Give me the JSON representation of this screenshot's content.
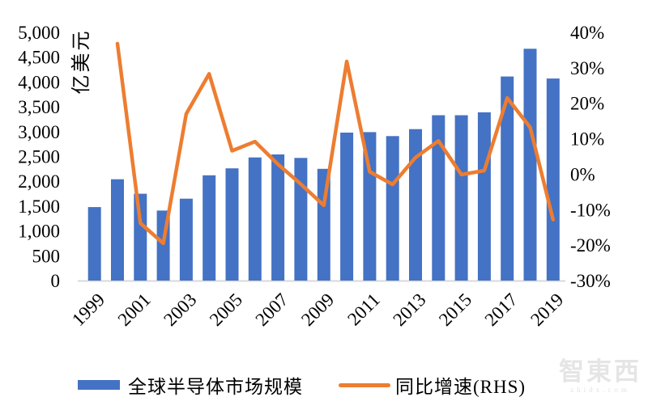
{
  "chart_data": {
    "type": "combo_bar_line",
    "x": [
      1999,
      2000,
      2001,
      2002,
      2003,
      2004,
      2005,
      2006,
      2007,
      2008,
      2009,
      2010,
      2011,
      2012,
      2013,
      2014,
      2015,
      2016,
      2017,
      2018,
      2019
    ],
    "x_axis_tick_labels": [
      "1999",
      "2001",
      "2003",
      "2005",
      "2007",
      "2009",
      "2011",
      "2013",
      "2015",
      "2017",
      "2019"
    ],
    "bar_series": {
      "name": "全球半导体市场规模",
      "unit": "亿美元",
      "color": "#4472C4",
      "values": [
        1480,
        2040,
        1750,
        1410,
        1650,
        2120,
        2260,
        2480,
        2540,
        2470,
        2250,
        2980,
        2990,
        2910,
        3050,
        3330,
        3330,
        3390,
        4110,
        4670,
        4070
      ]
    },
    "line_series": {
      "name": "同比增速(RHS)",
      "color": "#ED7D31",
      "first_year": 2000,
      "values_pct": [
        36.8,
        -13.8,
        -19.5,
        17.0,
        28.3,
        6.6,
        9.2,
        2.8,
        -2.8,
        -8.8,
        31.8,
        0.7,
        -2.9,
        4.7,
        9.4,
        -0.1,
        1.0,
        21.5,
        13.2,
        -12.8
      ]
    },
    "left_axis": {
      "title": "亿美元",
      "min": 0,
      "max": 5000,
      "step": 500,
      "tick_labels": [
        "0",
        "500",
        "1,000",
        "1,500",
        "2,000",
        "2,500",
        "3,000",
        "3,500",
        "4,000",
        "4,500",
        "5,000"
      ]
    },
    "right_axis": {
      "min": -30,
      "max": 40,
      "step": 10,
      "tick_labels": [
        "-30%",
        "-20%",
        "-10%",
        "0%",
        "10%",
        "20%",
        "30%",
        "40%"
      ]
    },
    "grid": false,
    "legend_position": "bottom"
  },
  "legend": {
    "bar_label": "全球半导体市场规模",
    "line_label": "同比增速(RHS)"
  },
  "watermark": {
    "text": "智東西",
    "subtext": "zhidx.com"
  },
  "colors": {
    "bar": "#4472C4",
    "line": "#ED7D31",
    "axis_line": "#D9D9D9",
    "text": "#000000",
    "watermark": "#E5E5E5"
  }
}
